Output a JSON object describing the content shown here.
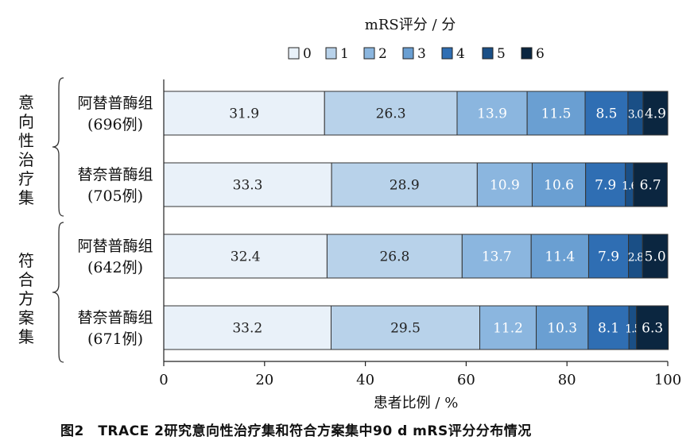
{
  "chart_data": {
    "type": "bar",
    "orientation": "horizontal",
    "stacked": true,
    "legend_title": "mRS评分 / 分",
    "legend": [
      "0",
      "1",
      "2",
      "3",
      "4",
      "5",
      "6"
    ],
    "colors": [
      "#e9f1f9",
      "#b8d2ea",
      "#8bb6df",
      "#6a9fd2",
      "#2f6eb3",
      "#1a4f86",
      "#0b2640"
    ],
    "label_colors": [
      "#222222",
      "#222222",
      "#ffffff",
      "#ffffff",
      "#ffffff",
      "#ffffff",
      "#ffffff"
    ],
    "groups": [
      {
        "label_chars": [
          "意",
          "向",
          "性",
          "治",
          "疗",
          "集"
        ]
      },
      {
        "label_chars": [
          "符",
          "合",
          "方",
          "案",
          "集"
        ]
      }
    ],
    "bars": [
      {
        "name": "阿替普酶组",
        "n": "(696例)",
        "values": [
          31.9,
          26.3,
          13.9,
          11.5,
          8.5,
          3.0,
          4.9
        ],
        "labels": [
          "31.9",
          "26.3",
          "13.9",
          "11.5",
          "8.5",
          "3.0",
          "4.9"
        ]
      },
      {
        "name": "替奈普酶组",
        "n": "(705例)",
        "values": [
          33.3,
          28.9,
          10.9,
          10.6,
          7.9,
          1.6,
          6.7
        ],
        "labels": [
          "33.3",
          "28.9",
          "10.9",
          "10.6",
          "7.9",
          "1.6",
          "6.7"
        ]
      },
      {
        "name": "阿替普酶组",
        "n": "(642例)",
        "values": [
          32.4,
          26.8,
          13.7,
          11.4,
          7.9,
          2.8,
          5.0
        ],
        "labels": [
          "32.4",
          "26.8",
          "13.7",
          "11.4",
          "7.9",
          "2.8",
          "5.0"
        ]
      },
      {
        "name": "替奈普酶组",
        "n": "(671例)",
        "values": [
          33.2,
          29.5,
          11.2,
          10.3,
          8.1,
          1.5,
          6.3
        ],
        "labels": [
          "33.2",
          "29.5",
          "11.2",
          "10.3",
          "8.1",
          "1.5",
          "6.3"
        ]
      }
    ],
    "xlabel": "患者比例 / %",
    "xlim": [
      0,
      100
    ],
    "xticks": [
      "0",
      "20",
      "40",
      "60",
      "80",
      "100"
    ]
  },
  "caption": "图2　TRACE 2研究意向性治疗集和符合方案集中90 d mRS评分分布情况"
}
